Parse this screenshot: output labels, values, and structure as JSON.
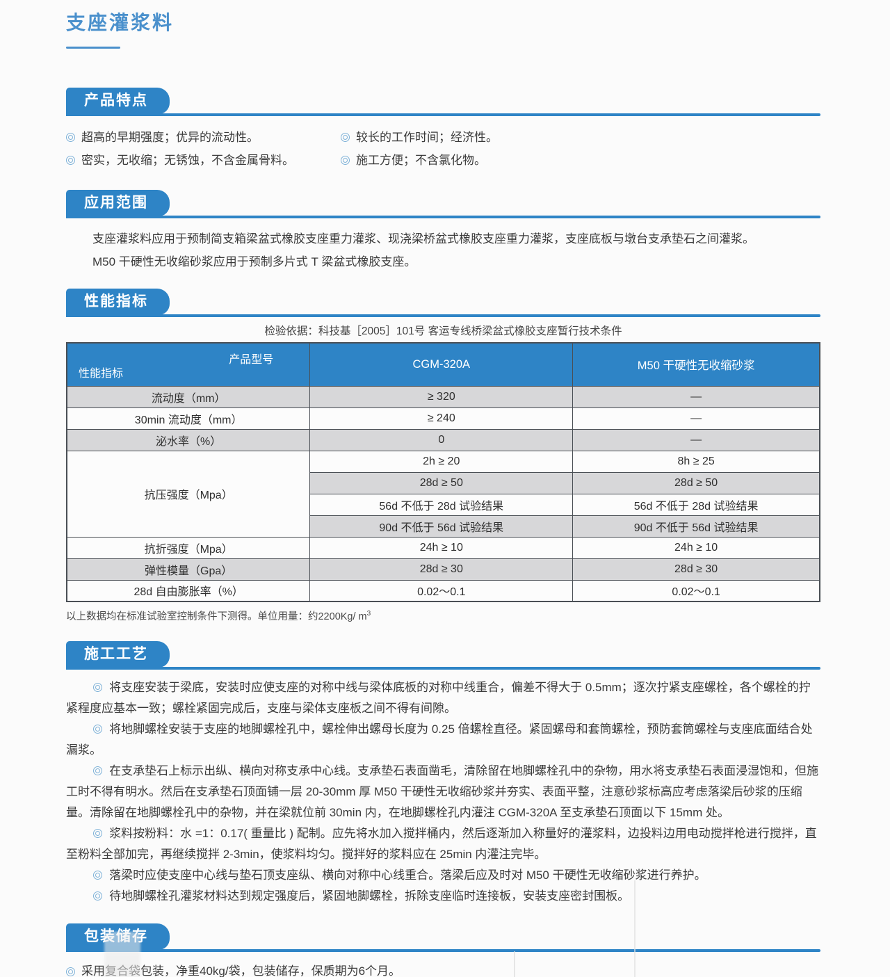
{
  "colors": {
    "accent": "#2e84c6",
    "title_blue": "#4a90cc",
    "bullet_blue": "#7fb2d8",
    "table_header_blue": "#2e84c6",
    "row_gray": "#d7d7d9"
  },
  "page": {
    "title": "支座灌浆料"
  },
  "sections": {
    "features": {
      "heading": "产品特点",
      "items_left": [
        "超高的早期强度；优异的流动性。",
        "密实，无收缩；无锈蚀，不含金属骨料。"
      ],
      "items_right": [
        "较长的工作时间；经济性。",
        "施工方便；不含氯化物。"
      ]
    },
    "application": {
      "heading": "应用范围",
      "lines": [
        "支座灌浆料应用于预制简支箱梁盆式橡胶支座重力灌浆、现浇梁桥盆式橡胶支座重力灌浆，支座底板与墩台支承垫石之间灌浆。",
        "M50 干硬性无收缩砂浆应用于预制多片式 T 梁盆式橡胶支座。"
      ]
    },
    "performance": {
      "heading": "性能指标",
      "basis": "检验依据：科技基［2005］101号 客运专线桥梁盆式橡胶支座暂行技术条件",
      "table": {
        "corner_top": "产品型号",
        "corner_bottom": "性能指标",
        "columns": [
          "CGM-320A",
          "M50 干硬性无收缩砂浆"
        ],
        "rows": [
          {
            "label": "流动度（mm）",
            "cgm": "≥ 320",
            "m50": "—"
          },
          {
            "label": "30min 流动度（mm）",
            "cgm": "≥ 240",
            "m50": "—"
          },
          {
            "label": "泌水率（%）",
            "cgm": "0",
            "m50": "—"
          },
          {
            "label": "抗压强度（Mpa）",
            "cgm": "2h ≥ 20",
            "m50": "8h ≥ 25"
          },
          {
            "cgm": "28d ≥ 50",
            "m50": "28d ≥ 50"
          },
          {
            "cgm": "56d 不低于 28d 试验结果",
            "m50": "56d 不低于 28d 试验结果"
          },
          {
            "cgm": "90d 不低于 56d 试验结果",
            "m50": "90d 不低于 56d 试验结果"
          },
          {
            "label": "抗折强度（Mpa）",
            "cgm": "24h ≥ 10",
            "m50": "24h ≥ 10"
          },
          {
            "label": "弹性模量（Gpa）",
            "cgm": "28d ≥ 30",
            "m50": "28d ≥ 30"
          },
          {
            "label": "28d 自由膨胀率（%）",
            "cgm": "0.02～0.1",
            "m50": "0.02～0.1"
          }
        ]
      },
      "footnote": "以上数据均在标准试验室控制条件下测得。单位用量：约2200Kg/ m",
      "footnote_sup": "3"
    },
    "construction": {
      "heading": "施工工艺",
      "paragraphs": [
        "将支座安装于梁底，安装时应使支座的对称中线与梁体底板的对称中线重合，偏差不得大于 0.5mm；逐次拧紧支座螺栓，各个螺栓的拧紧程度应基本一致；螺栓紧固完成后，支座与梁体支座板之间不得有间隙。",
        "将地脚螺栓安装于支座的地脚螺栓孔中，螺栓伸出螺母长度为 0.25 倍螺栓直径。紧固螺母和套筒螺栓，预防套筒螺栓与支座底面结合处漏浆。",
        "在支承垫石上标示出纵、横向对称支承中心线。支承垫石表面凿毛，清除留在地脚螺栓孔中的杂物，用水将支承垫石表面浸湿饱和，但施工时不得有明水。然后在支承垫石顶面铺一层 20-30mm 厚 M50 干硬性无收缩砂浆并夯实、表面平整，注意砂浆标高应考虑落梁后砂浆的压缩量。清除留在地脚螺栓孔中的杂物，并在梁就位前 30min 内，在地脚螺栓孔内灌注 CGM-320A 至支承垫石顶面以下 15mm 处。",
        "浆料按粉料：水 =1：0.17( 重量比 ) 配制。应先将水加入搅拌桶内，然后逐渐加入称量好的灌浆料，边投料边用电动搅拌枪进行搅拌，直至粉料全部加完，再继续搅拌 2-3min，使浆料均匀。搅拌好的浆料应在 25min 内灌注完毕。",
        "落梁时应使支座中心线与垫石顶支座纵、横向对称中心线重合。落梁后应及时对 M50 干硬性无收缩砂浆进行养护。",
        "待地脚螺栓孔灌浆材料达到规定强度后，紧固地脚螺栓，拆除支座临时连接板，安装支座密封围板。"
      ]
    },
    "packaging": {
      "heading": "包装储存",
      "items": [
        "采用复合袋包装，净重40kg/袋，包装储存，保质期为6个月。"
      ]
    }
  }
}
